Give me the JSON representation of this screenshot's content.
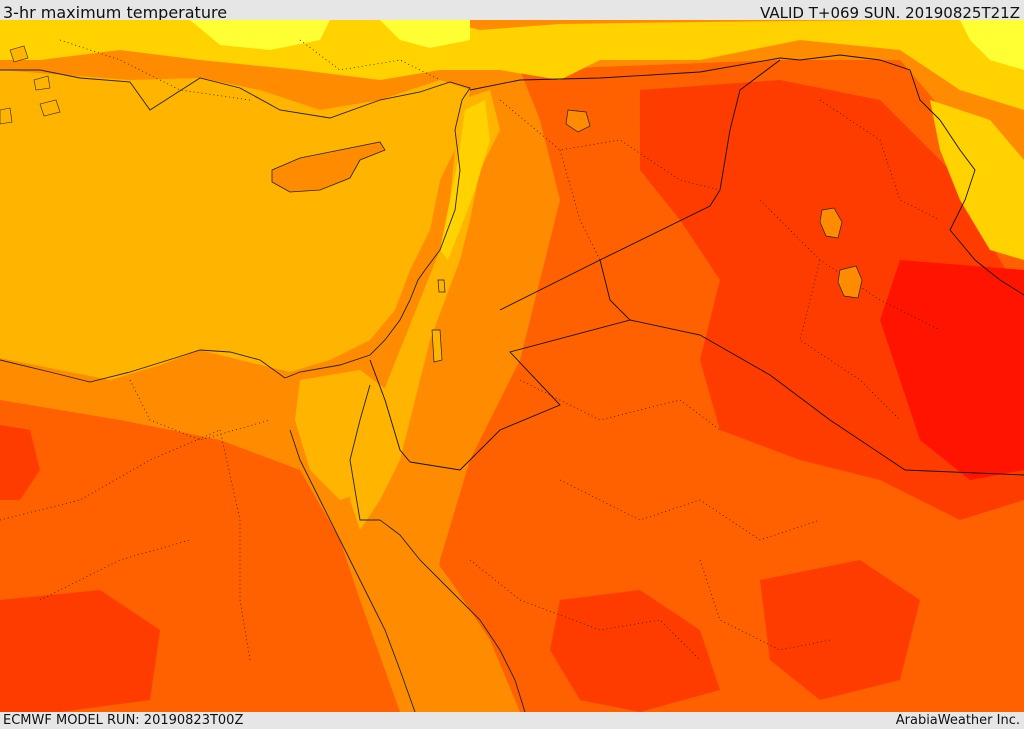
{
  "header": {
    "title": "3-hr maximum temperature",
    "valid_time": "VALID T+069 SUN. 20190825T21Z"
  },
  "footer": {
    "model_run": "ECMWF MODEL RUN: 20190823T00Z",
    "provider": "ArabiaWeather Inc."
  },
  "map": {
    "field": "3-hr maximum temperature",
    "palette": [
      "#ffff33",
      "#ffd200",
      "#ffb400",
      "#ff8c00",
      "#ff6000",
      "#ff3c00",
      "#ff1400"
    ]
  }
}
